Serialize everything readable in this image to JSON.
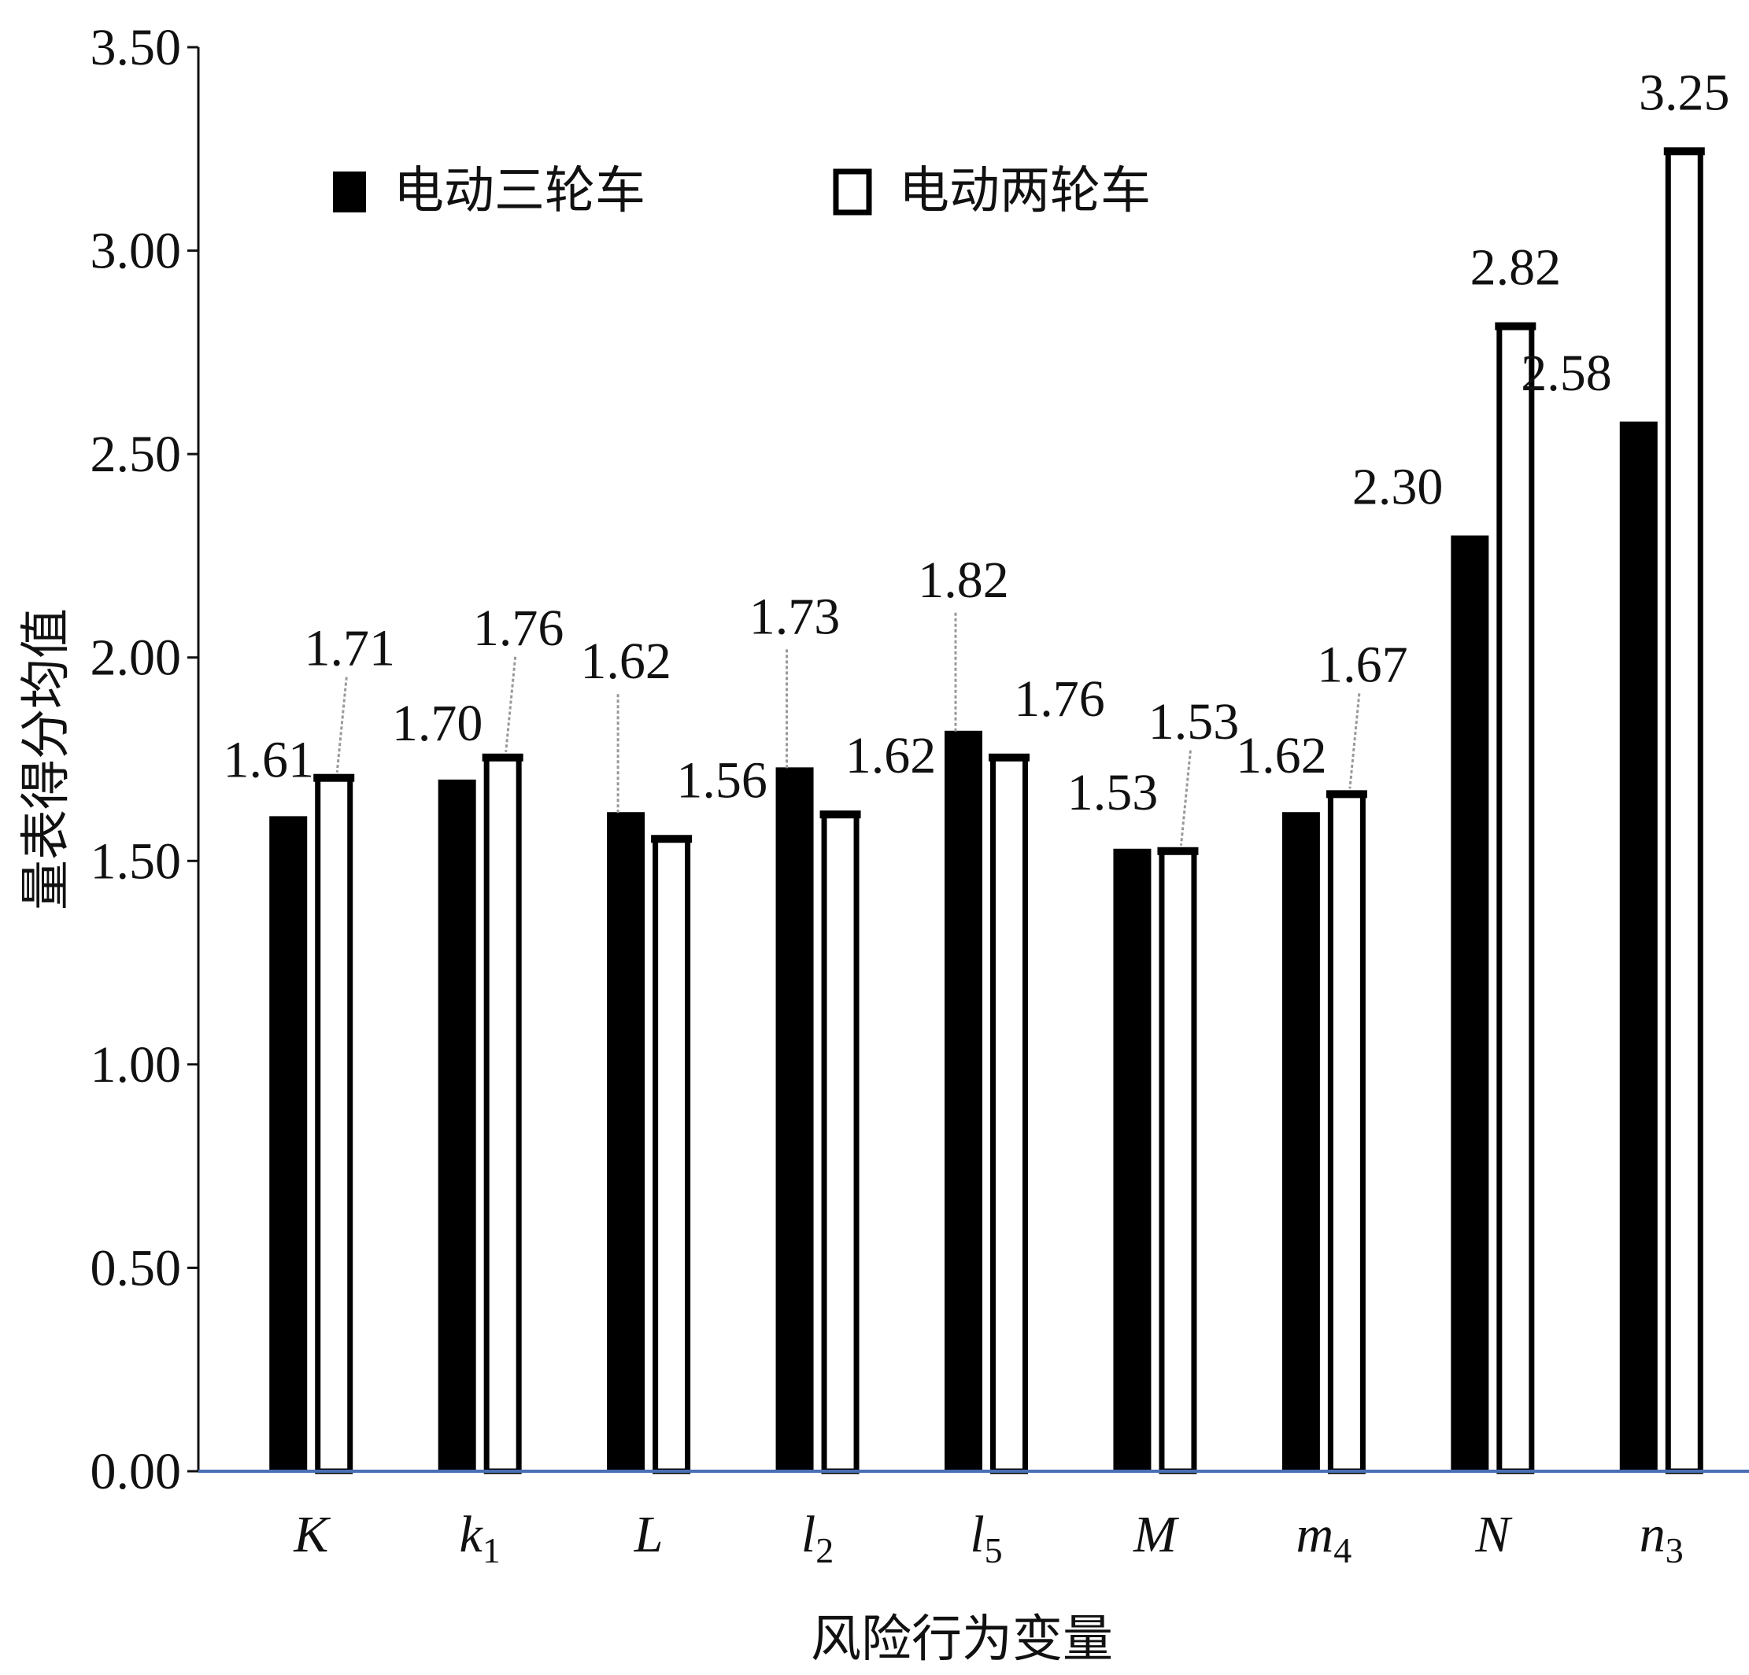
{
  "chart_data": {
    "type": "bar",
    "title": "",
    "xlabel": "风险行为变量",
    "ylabel": "量表得分均值",
    "ylim": [
      0,
      3.5
    ],
    "yticks": [
      "0.00",
      "0.50",
      "1.00",
      "1.50",
      "2.00",
      "2.50",
      "3.00",
      "3.50"
    ],
    "categories": [
      {
        "base": "K",
        "sub": ""
      },
      {
        "base": "k",
        "sub": "1"
      },
      {
        "base": "L",
        "sub": ""
      },
      {
        "base": "l",
        "sub": "2"
      },
      {
        "base": "l",
        "sub": "5"
      },
      {
        "base": "M",
        "sub": ""
      },
      {
        "base": "m",
        "sub": "4"
      },
      {
        "base": "N",
        "sub": ""
      },
      {
        "base": "n",
        "sub": "3"
      }
    ],
    "series": [
      {
        "name": "电动三轮车",
        "color": "#000000",
        "values": [
          1.61,
          1.7,
          1.62,
          1.73,
          1.82,
          1.53,
          1.62,
          2.3,
          2.58
        ],
        "labels": [
          "1.61",
          "1.70",
          "1.62",
          "1.73",
          "1.82",
          "1.53",
          "1.62",
          "2.30",
          "2.58"
        ]
      },
      {
        "name": "电动两轮车",
        "color": "#ffffff",
        "values": [
          1.71,
          1.76,
          1.56,
          1.62,
          1.76,
          1.53,
          1.67,
          2.82,
          3.25
        ],
        "labels": [
          "1.71",
          "1.76",
          "1.56",
          "1.62",
          "1.76",
          "1.53",
          "1.67",
          "2.82",
          "3.25"
        ]
      }
    ],
    "legend_position": "top-left",
    "grid": false,
    "baseline_color": "#4a6fb5"
  }
}
